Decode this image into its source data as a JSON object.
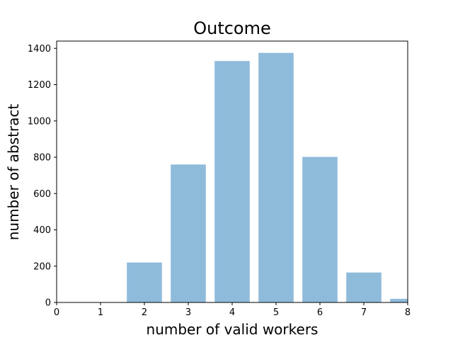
{
  "chart_data": {
    "type": "bar",
    "title": "Outcome",
    "xlabel": "number of valid workers",
    "ylabel": "number of abstract",
    "x": [
      2,
      3,
      4,
      5,
      6,
      7,
      8
    ],
    "values": [
      220,
      760,
      1330,
      1375,
      802,
      165,
      20
    ],
    "xlim": [
      0,
      8
    ],
    "ylim": [
      0,
      1440
    ],
    "xticks": [
      "0",
      "1",
      "2",
      "3",
      "4",
      "5",
      "6",
      "7",
      "8"
    ],
    "yticks": [
      "0",
      "200",
      "400",
      "600",
      "800",
      "1000",
      "1200",
      "1400"
    ],
    "bar_color": "#8fbbdb",
    "grid": false,
    "legend": "none"
  }
}
